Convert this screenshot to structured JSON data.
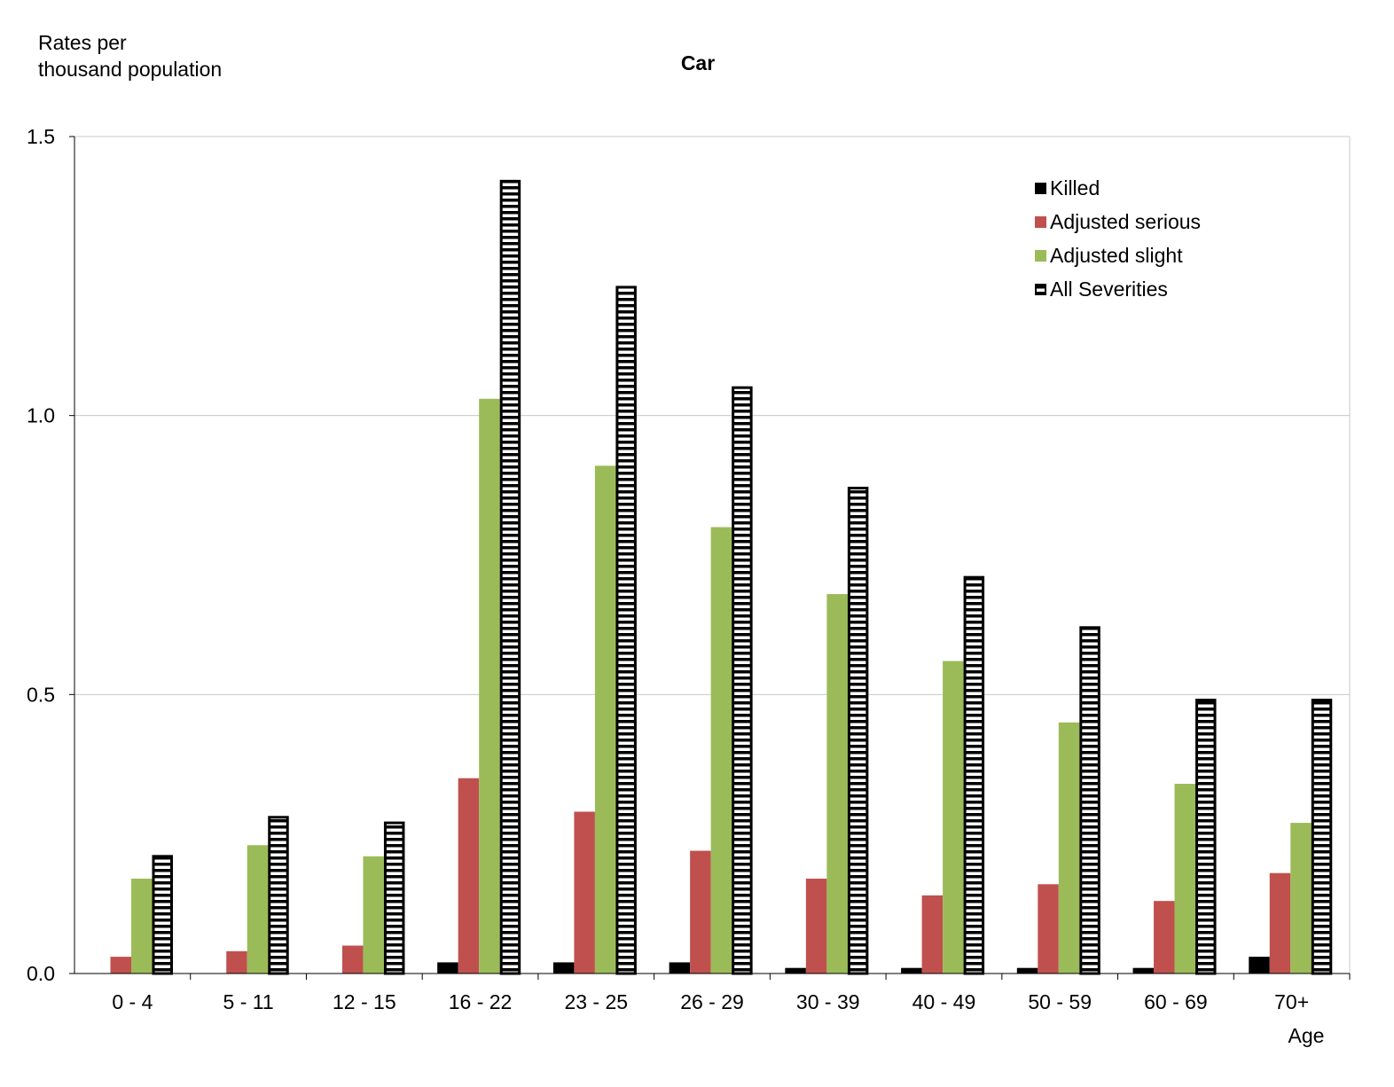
{
  "chart_data": {
    "type": "bar",
    "title": "Car",
    "ylabel": "Rates per thousand population",
    "ylabel_lines": [
      "Rates per",
      "thousand population"
    ],
    "xlabel": "Age",
    "ylim": [
      0,
      1.5
    ],
    "yticks": [
      "0.0",
      "0.5",
      "1.0",
      "1.5"
    ],
    "ytick_values": [
      0,
      0.5,
      1.0,
      1.5
    ],
    "grid": true,
    "legend_position": "top-right",
    "categories": [
      "0  - 4",
      "5  - 11",
      "12 - 15",
      "16 - 22",
      "23 - 25",
      "26 - 29",
      "30 - 39",
      "40 - 49",
      "50 - 59",
      "60 - 69",
      "70+"
    ],
    "series": [
      {
        "name": "Killed",
        "color": "#000000",
        "pattern": "solid",
        "values": [
          0,
          0,
          0,
          0.02,
          0.02,
          0.02,
          0.01,
          0.01,
          0.01,
          0.01,
          0.03
        ]
      },
      {
        "name": "Adjusted serious",
        "color": "#C0504D",
        "pattern": "solid",
        "values": [
          0.03,
          0.04,
          0.05,
          0.35,
          0.29,
          0.22,
          0.17,
          0.14,
          0.16,
          0.13,
          0.18
        ]
      },
      {
        "name": "Adjusted slight",
        "color": "#9BBB59",
        "pattern": "solid",
        "values": [
          0.17,
          0.23,
          0.21,
          1.03,
          0.91,
          0.8,
          0.68,
          0.56,
          0.45,
          0.34,
          0.27
        ]
      },
      {
        "name": "All Severities",
        "color": "#000000",
        "pattern": "horizontal-stripes",
        "values": [
          0.21,
          0.28,
          0.27,
          1.42,
          1.23,
          1.05,
          0.87,
          0.71,
          0.62,
          0.49,
          0.49
        ]
      }
    ]
  }
}
